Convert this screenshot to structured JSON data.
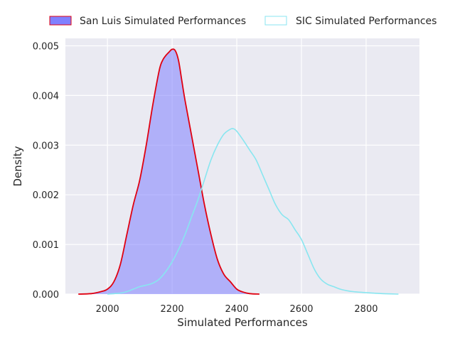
{
  "chart_data": {
    "type": "area",
    "title": "",
    "xlabel": "Simulated Performances",
    "ylabel": "Density",
    "xlim": [
      1870,
      2965
    ],
    "ylim": [
      0,
      0.00515
    ],
    "x_ticks": [
      {
        "value": 2000,
        "label": "2000"
      },
      {
        "value": 2200,
        "label": "2200"
      },
      {
        "value": 2400,
        "label": "2400"
      },
      {
        "value": 2600,
        "label": "2600"
      },
      {
        "value": 2800,
        "label": "2800"
      }
    ],
    "y_ticks": [
      {
        "value": 0,
        "label": "0.000"
      },
      {
        "value": 0.001,
        "label": "0.001"
      },
      {
        "value": 0.002,
        "label": "0.002"
      },
      {
        "value": 0.003,
        "label": "0.003"
      },
      {
        "value": 0.004,
        "label": "0.004"
      },
      {
        "value": 0.005,
        "label": "0.005"
      }
    ],
    "grid": true,
    "legend_position": "top",
    "series": [
      {
        "name": "San Luis Simulated Performances",
        "fill_color": "#8080ff",
        "line_color": "#e00010",
        "filled": true,
        "x": [
          1910,
          1950,
          1980,
          2000,
          2020,
          2040,
          2060,
          2080,
          2100,
          2120,
          2140,
          2160,
          2170,
          2180,
          2190,
          2200,
          2210,
          2220,
          2230,
          2240,
          2260,
          2280,
          2300,
          2320,
          2340,
          2360,
          2380,
          2400,
          2420,
          2440,
          2470
        ],
        "y": [
          0,
          1e-05,
          5e-05,
          0.0001,
          0.00025,
          0.0006,
          0.0012,
          0.0018,
          0.0023,
          0.003,
          0.0038,
          0.0045,
          0.0047,
          0.0048,
          0.00487,
          0.00493,
          0.0049,
          0.0047,
          0.0043,
          0.0039,
          0.0032,
          0.0025,
          0.0018,
          0.0012,
          0.0007,
          0.0004,
          0.00025,
          0.0001,
          4e-05,
          1e-05,
          0
        ]
      },
      {
        "name": "SIC Simulated Performances",
        "line_color": "#88e6f0",
        "filled": false,
        "x": [
          2000,
          2040,
          2060,
          2080,
          2100,
          2120,
          2140,
          2160,
          2180,
          2200,
          2220,
          2240,
          2260,
          2280,
          2300,
          2320,
          2340,
          2360,
          2380,
          2390,
          2400,
          2420,
          2440,
          2460,
          2480,
          2500,
          2520,
          2540,
          2560,
          2580,
          2600,
          2620,
          2640,
          2660,
          2680,
          2700,
          2720,
          2740,
          2760,
          2800,
          2850,
          2900
        ],
        "y": [
          0,
          2e-05,
          5e-05,
          0.0001,
          0.00015,
          0.00018,
          0.00022,
          0.0003,
          0.00045,
          0.00065,
          0.0009,
          0.0012,
          0.00155,
          0.0019,
          0.0023,
          0.0027,
          0.003,
          0.00322,
          0.00332,
          0.00333,
          0.00328,
          0.0031,
          0.0029,
          0.0027,
          0.0024,
          0.0021,
          0.0018,
          0.0016,
          0.0015,
          0.0013,
          0.0011,
          0.0008,
          0.0005,
          0.0003,
          0.0002,
          0.00015,
          0.0001,
          7e-05,
          5e-05,
          3e-05,
          1e-05,
          0
        ]
      }
    ]
  }
}
